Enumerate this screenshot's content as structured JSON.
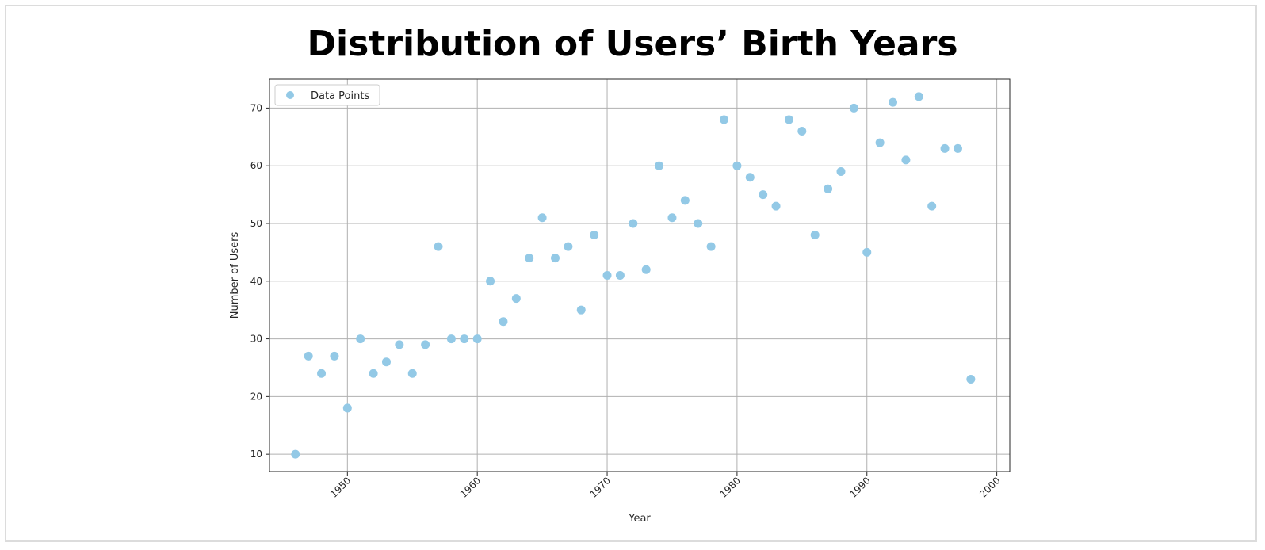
{
  "chart_data": {
    "type": "scatter",
    "title": "Distribution of Users’ Birth Years",
    "xlabel": "Year",
    "ylabel": "Number of Users",
    "xlim": [
      1944,
      2001
    ],
    "ylim": [
      7,
      75
    ],
    "xticks": [
      1950,
      1960,
      1970,
      1980,
      1990,
      2000
    ],
    "yticks": [
      10,
      20,
      30,
      40,
      50,
      60,
      70
    ],
    "grid": true,
    "legend": {
      "placement": "top-left",
      "entries": [
        "Data Points"
      ]
    },
    "marker_color": "#93c9e6",
    "series": [
      {
        "name": "Data Points",
        "x": [
          1946,
          1947,
          1948,
          1949,
          1950,
          1951,
          1952,
          1953,
          1954,
          1955,
          1956,
          1957,
          1958,
          1959,
          1960,
          1961,
          1962,
          1963,
          1964,
          1965,
          1966,
          1967,
          1968,
          1969,
          1970,
          1971,
          1972,
          1973,
          1974,
          1975,
          1976,
          1977,
          1978,
          1979,
          1980,
          1981,
          1982,
          1983,
          1984,
          1985,
          1986,
          1987,
          1988,
          1989,
          1990,
          1991,
          1992,
          1993,
          1994,
          1995,
          1996,
          1997,
          1998
        ],
        "y": [
          10,
          27,
          24,
          27,
          18,
          30,
          24,
          26,
          29,
          24,
          29,
          46,
          30,
          30,
          30,
          40,
          33,
          37,
          44,
          51,
          44,
          46,
          35,
          48,
          41,
          41,
          50,
          42,
          60,
          51,
          54,
          50,
          46,
          68,
          60,
          58,
          55,
          53,
          68,
          66,
          48,
          56,
          59,
          70,
          45,
          64,
          71,
          61,
          72,
          53,
          63,
          63,
          23
        ]
      }
    ]
  }
}
